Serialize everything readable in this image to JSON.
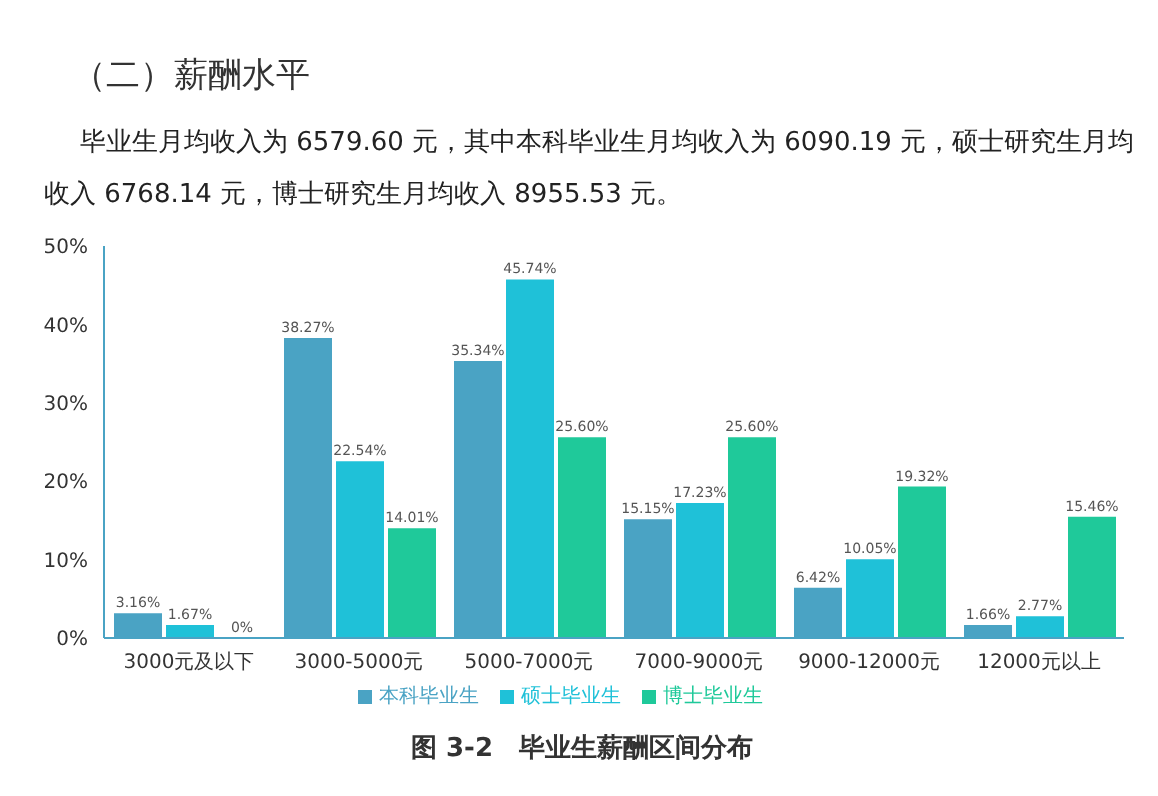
{
  "chart_data": {
    "type": "bar",
    "title": "（二）薪酬水平",
    "subtitle": "毕业生月均收入为 6579.60 元，其中本科毕业生月均收入为 6090.19 元，硕士研究生月均收入 6768.14 元，博士研究生月均收入 8955.53 元。",
    "categories": [
      "3000元及以下",
      "3000-5000元",
      "5000-7000元",
      "7000-9000元",
      "9000-12000元",
      "12000元以上"
    ],
    "series": [
      {
        "name": "本科毕业生",
        "color": "#4aa3c4",
        "values": [
          3.16,
          38.27,
          35.34,
          15.15,
          6.42,
          1.66
        ],
        "value_labels": [
          "3.16%",
          "38.27%",
          "35.34%",
          "15.15%",
          "6.42%",
          "1.66%"
        ]
      },
      {
        "name": "硕士毕业生",
        "color": "#1fc1d8",
        "values": [
          1.67,
          22.54,
          45.74,
          17.23,
          10.05,
          2.77
        ],
        "value_labels": [
          "1.67%",
          "22.54%",
          "45.74%",
          "17.23%",
          "10.05%",
          "2.77%"
        ]
      },
      {
        "name": "博士毕业生",
        "color": "#1fc99a",
        "values": [
          0,
          14.01,
          25.6,
          25.6,
          19.32,
          15.46
        ],
        "value_labels": [
          "0%",
          "14.01%",
          "25.60%",
          "25.60%",
          "19.32%",
          "15.46%"
        ]
      }
    ],
    "ylim": [
      0,
      50
    ],
    "yticks": [
      {
        "value": 0,
        "label": "0%"
      },
      {
        "value": 10,
        "label": "10%"
      },
      {
        "value": 20,
        "label": "20%"
      },
      {
        "value": 30,
        "label": "30%"
      },
      {
        "value": 40,
        "label": "40%"
      },
      {
        "value": 50,
        "label": "50%"
      }
    ],
    "grid": false,
    "legend": "bottom",
    "annotations": [
      "图 3-2　毕业生薪酬区间分布"
    ]
  }
}
